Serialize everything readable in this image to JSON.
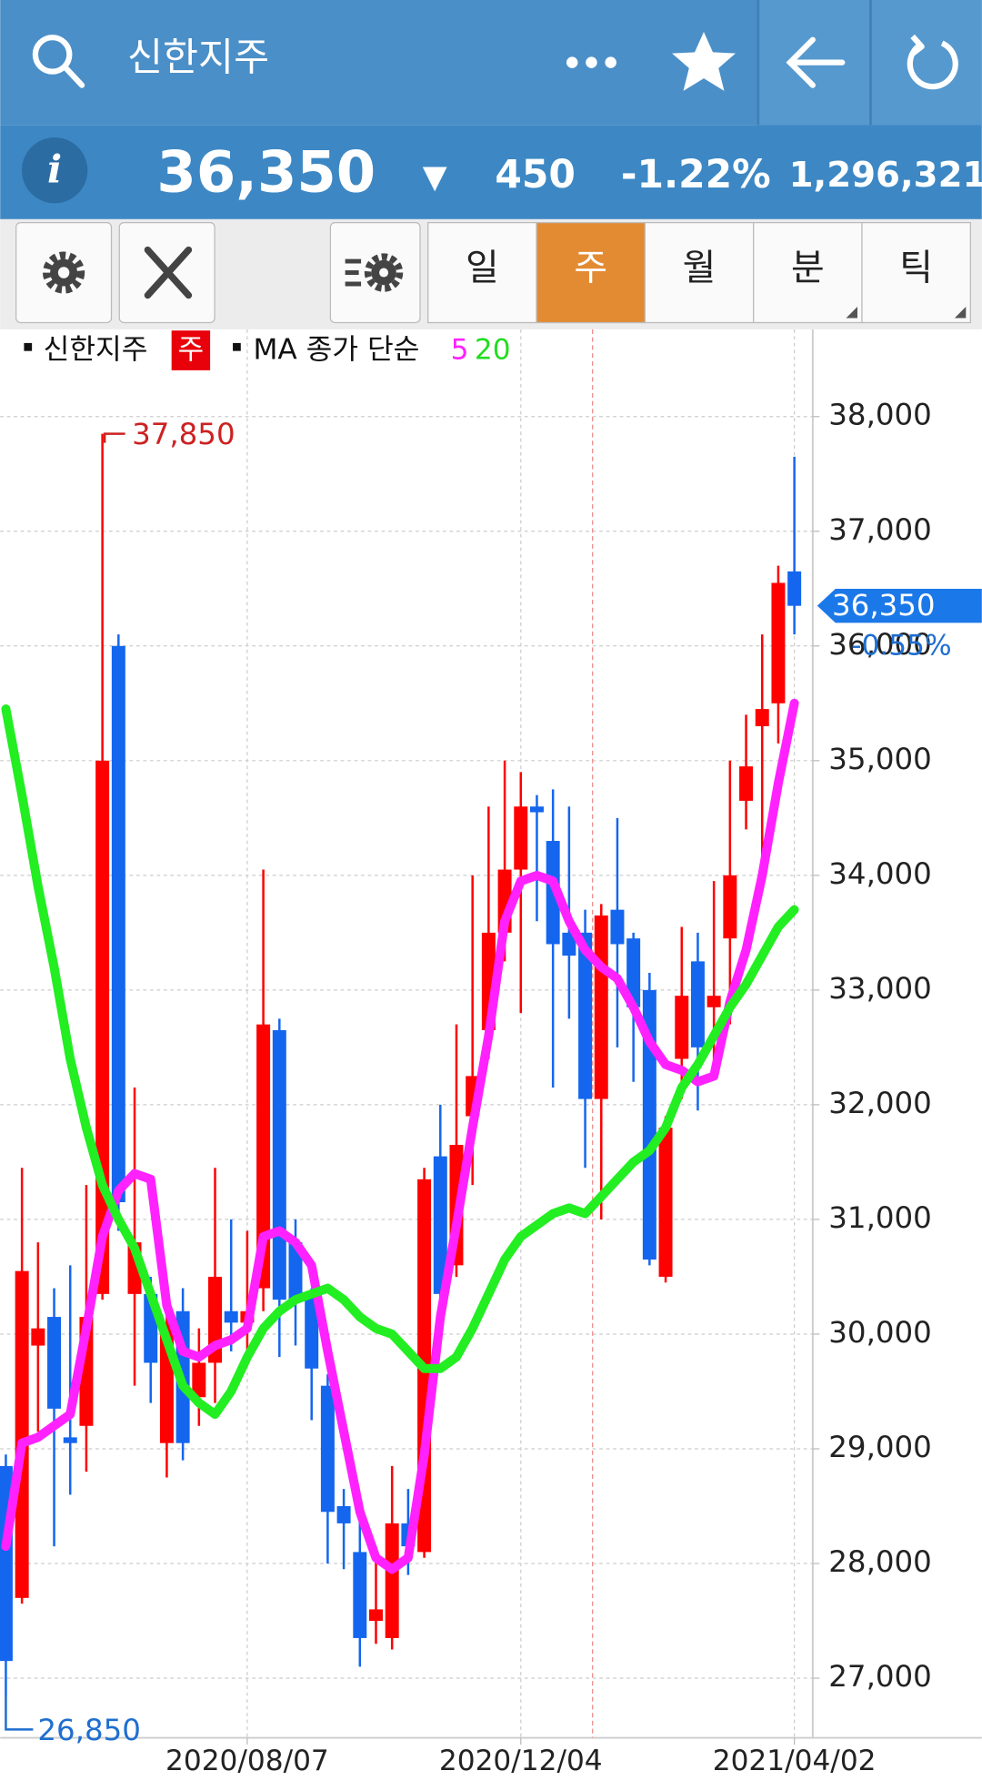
{
  "header": {
    "title": "신한지주",
    "price": "36,350",
    "direction": "▼",
    "change": "450",
    "change_rate": "-1.22%",
    "volume": "1,296,321"
  },
  "toolbar": {
    "tabs": [
      "일",
      "주",
      "월",
      "분",
      "틱"
    ],
    "selected": 1
  },
  "chart_data": {
    "type": "candlestick",
    "legend_period": "주",
    "ma_label": "MA 종가 단순",
    "categories": [
      null,
      null,
      null,
      null,
      null,
      null,
      null,
      null,
      null,
      null,
      null,
      null,
      null,
      null,
      null,
      "2020/08/07",
      null,
      null,
      null,
      null,
      null,
      null,
      null,
      null,
      null,
      null,
      null,
      null,
      null,
      null,
      null,
      null,
      "2020/12/04",
      null,
      null,
      null,
      null,
      null,
      null,
      null,
      null,
      null,
      null,
      null,
      null,
      null,
      null,
      null,
      null,
      "2021/04/02"
    ],
    "series": [
      {
        "name": "신한지주",
        "type": "candlestick",
        "up_color": "#ff0000",
        "down_color": "#1466ee",
        "open": [
          28850,
          27700,
          29900,
          30150,
          29100,
          29200,
          30350,
          36000,
          30350,
          30350,
          29050,
          30200,
          29450,
          29750,
          30200,
          30100,
          30400,
          32650,
          30800,
          30350,
          29550,
          28500,
          28100,
          27500,
          27350,
          28350,
          28100,
          31550,
          30600,
          31900,
          32650,
          33500,
          34050,
          34600,
          34300,
          33500,
          33500,
          32050,
          33700,
          33450,
          33000,
          30500,
          32400,
          33250,
          32850,
          33450,
          34650,
          35300,
          35500,
          36650
        ],
        "high": [
          28950,
          31450,
          30800,
          30400,
          30600,
          31300,
          37850,
          36100,
          32150,
          30500,
          30400,
          30400,
          30050,
          31450,
          31000,
          30900,
          34050,
          32750,
          31000,
          30400,
          29650,
          28650,
          28400,
          28150,
          28850,
          28650,
          31450,
          32000,
          32700,
          34000,
          34600,
          35000,
          34900,
          34700,
          34750,
          34600,
          33700,
          33750,
          34500,
          33500,
          33150,
          31900,
          33550,
          33500,
          33950,
          35000,
          35400,
          36100,
          36700,
          37650
        ],
        "low": [
          26850,
          27650,
          29150,
          28150,
          28600,
          28800,
          30300,
          30900,
          29550,
          29400,
          28750,
          28900,
          29200,
          29400,
          29850,
          29800,
          30200,
          29800,
          29900,
          29250,
          28000,
          27950,
          27100,
          27300,
          27250,
          27900,
          28050,
          30300,
          30500,
          31300,
          32400,
          33250,
          32800,
          33600,
          32150,
          32750,
          31450,
          31000,
          32500,
          32200,
          30600,
          30450,
          32050,
          31950,
          32350,
          32700,
          34400,
          34000,
          35150,
          36100
        ],
        "close": [
          27150,
          30550,
          30050,
          29350,
          29050,
          30150,
          35000,
          31150,
          30800,
          29750,
          30100,
          29050,
          29750,
          30500,
          30100,
          30200,
          32700,
          30300,
          30300,
          29700,
          28450,
          28350,
          27350,
          27600,
          28350,
          28150,
          31350,
          30350,
          31650,
          32250,
          33500,
          34050,
          34600,
          34550,
          33400,
          33300,
          32050,
          33650,
          33400,
          32850,
          30650,
          31800,
          32950,
          32500,
          32950,
          34000,
          34950,
          35450,
          36550,
          36350
        ]
      },
      {
        "name": "5",
        "type": "line",
        "color": "#ff22ff",
        "values": [
          28150,
          29050,
          29100,
          29200,
          29300,
          30050,
          30850,
          31250,
          31400,
          31350,
          30250,
          29850,
          29800,
          29900,
          29950,
          30050,
          30850,
          30900,
          30800,
          30600,
          29850,
          29150,
          28450,
          28050,
          27950,
          28050,
          28950,
          30150,
          30950,
          31800,
          32600,
          33600,
          33950,
          34000,
          33950,
          33600,
          33350,
          33200,
          33100,
          32850,
          32550,
          32350,
          32300,
          32200,
          32250,
          32900,
          33350,
          34000,
          34800,
          35500
        ]
      },
      {
        "name": "20",
        "type": "line",
        "color": "#22ee22",
        "values": [
          35450,
          34700,
          33900,
          33200,
          32400,
          31800,
          31300,
          31000,
          30750,
          30350,
          29950,
          29550,
          29400,
          29300,
          29500,
          29800,
          30050,
          30200,
          30300,
          30350,
          30400,
          30300,
          30150,
          30050,
          30000,
          29850,
          29700,
          29700,
          29800,
          30050,
          30350,
          30650,
          30850,
          30950,
          31050,
          31100,
          31050,
          31200,
          31350,
          31500,
          31600,
          31800,
          32150,
          32350,
          32600,
          32850,
          33050,
          33300,
          33550,
          33700
        ]
      }
    ],
    "ylim": [
      26480,
      38760
    ],
    "yticks": [
      {
        "value": 27000,
        "label": "27,000"
      },
      {
        "value": 28000,
        "label": "28,000"
      },
      {
        "value": 29000,
        "label": "29,000"
      },
      {
        "value": 30000,
        "label": "30,000"
      },
      {
        "value": 31000,
        "label": "31,000"
      },
      {
        "value": 32000,
        "label": "32,000"
      },
      {
        "value": 33000,
        "label": "33,000"
      },
      {
        "value": 34000,
        "label": "34,000"
      },
      {
        "value": 35000,
        "label": "35,000"
      },
      {
        "value": 36000,
        "label": "36,000"
      },
      {
        "value": 37000,
        "label": "37,000"
      },
      {
        "value": 38000,
        "label": "38,000"
      }
    ],
    "grid": true,
    "max_label": {
      "value": 37850,
      "label": "37,850"
    },
    "min_label": {
      "value": 26850,
      "label": "26,850"
    },
    "last_price": {
      "value": 36350,
      "label": "36,350"
    },
    "last_change": "-0.55%"
  }
}
